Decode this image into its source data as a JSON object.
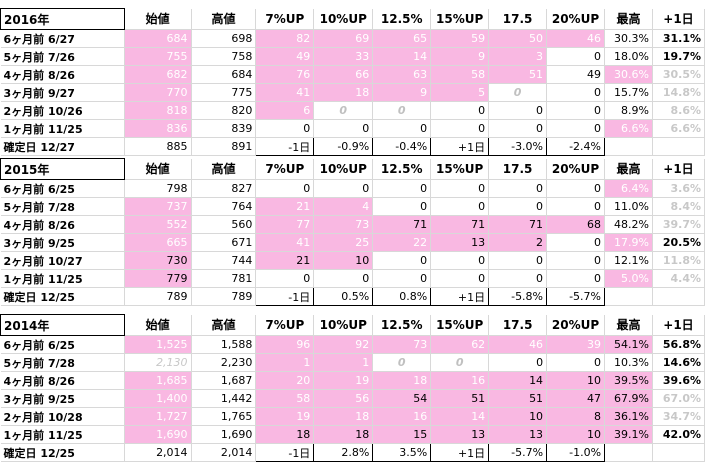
{
  "headers": [
    "始値",
    "高値",
    "7%UP",
    "10%UP",
    "12.5%",
    "15%UP",
    "17.5",
    "20%UP",
    "最高",
    "+1日"
  ],
  "colors": {
    "highlight": "#f9b8e2",
    "muted": "#c8c8c8",
    "grid": "#d8d8d8"
  },
  "blocks": [
    {
      "year": "2016年",
      "rows": [
        {
          "label": "6ヶ月前  6/27",
          "open": "684",
          "high": "698",
          "up7": "82",
          "up10": "69",
          "up125": "65",
          "up15": "59",
          "up175": "50",
          "up20": "46",
          "max": "30.3%",
          "next": "31.1%"
        },
        {
          "label": "5ヶ月前  7/26",
          "open": "755",
          "high": "758",
          "up7": "49",
          "up10": "33",
          "up125": "14",
          "up15": "9",
          "up175": "3",
          "up20": "0",
          "max": "18.0%",
          "next": "19.7%"
        },
        {
          "label": "4ヶ月前  8/26",
          "open": "682",
          "high": "684",
          "up7": "76",
          "up10": "66",
          "up125": "63",
          "up15": "58",
          "up175": "51",
          "up20": "49",
          "max": "30.6%",
          "next": "30.5%"
        },
        {
          "label": "3ヶ月前  9/27",
          "open": "770",
          "high": "775",
          "up7": "41",
          "up10": "18",
          "up125": "9",
          "up15": "5",
          "up175": "0",
          "up20": "0",
          "max": "15.7%",
          "next": "14.8%"
        },
        {
          "label": "2ヶ月前  10/26",
          "open": "818",
          "high": "820",
          "up7": "6",
          "up10": "0",
          "up125": "0",
          "up15": "0",
          "up175": "0",
          "up20": "0",
          "max": "8.9%",
          "next": "8.6%"
        },
        {
          "label": "1ヶ月前  11/25",
          "open": "836",
          "high": "839",
          "up7": "0",
          "up10": "0",
          "up125": "0",
          "up15": "0",
          "up175": "0",
          "up20": "0",
          "max": "6.6%",
          "next": "6.6%"
        }
      ],
      "confirm": {
        "label": "確定日  12/27",
        "open": "885",
        "high": "891",
        "up7": "-1日",
        "up10": "-0.9%",
        "up125": "-0.4%",
        "up15": "+1日",
        "up175": "-3.0%",
        "up20": "-2.4%",
        "max": "",
        "next": ""
      }
    },
    {
      "year": "2015年",
      "rows": [
        {
          "label": "6ヶ月前  6/25",
          "open": "798",
          "high": "827",
          "up7": "0",
          "up10": "0",
          "up125": "0",
          "up15": "0",
          "up175": "0",
          "up20": "0",
          "max": "6.4%",
          "next": "3.6%"
        },
        {
          "label": "5ヶ月前  7/28",
          "open": "737",
          "high": "764",
          "up7": "21",
          "up10": "4",
          "up125": "0",
          "up15": "0",
          "up175": "0",
          "up20": "0",
          "max": "11.0%",
          "next": "8.4%"
        },
        {
          "label": "4ヶ月前  8/26",
          "open": "552",
          "high": "560",
          "up7": "77",
          "up10": "73",
          "up125": "71",
          "up15": "71",
          "up175": "71",
          "up20": "68",
          "max": "48.2%",
          "next": "39.7%"
        },
        {
          "label": "3ヶ月前  9/25",
          "open": "665",
          "high": "671",
          "up7": "41",
          "up10": "25",
          "up125": "22",
          "up15": "13",
          "up175": "2",
          "up20": "0",
          "max": "17.9%",
          "next": "20.5%"
        },
        {
          "label": "2ヶ月前  10/27",
          "open": "730",
          "high": "744",
          "up7": "21",
          "up10": "10",
          "up125": "0",
          "up15": "0",
          "up175": "0",
          "up20": "0",
          "max": "12.1%",
          "next": "11.8%"
        },
        {
          "label": "1ヶ月前  11/25",
          "open": "779",
          "high": "781",
          "up7": "0",
          "up10": "0",
          "up125": "0",
          "up15": "0",
          "up175": "0",
          "up20": "0",
          "max": "5.0%",
          "next": "4.4%"
        }
      ],
      "confirm": {
        "label": "確定日  12/25",
        "open": "789",
        "high": "789",
        "up7": "-1日",
        "up10": "0.5%",
        "up125": "0.8%",
        "up15": "+1日",
        "up175": "-5.8%",
        "up20": "-5.7%",
        "max": "",
        "next": ""
      }
    },
    {
      "year": "2014年",
      "rows": [
        {
          "label": "6ヶ月前  6/25",
          "open": "1,525",
          "high": "1,588",
          "up7": "96",
          "up10": "92",
          "up125": "73",
          "up15": "62",
          "up175": "46",
          "up20": "39",
          "max": "54.1%",
          "next": "56.8%"
        },
        {
          "label": "5ヶ月前  7/28",
          "open": "2,130",
          "high": "2,230",
          "up7": "1",
          "up10": "1",
          "up125": "0",
          "up15": "0",
          "up175": "0",
          "up20": "0",
          "max": "10.3%",
          "next": "14.6%"
        },
        {
          "label": "4ヶ月前  8/26",
          "open": "1,685",
          "high": "1,687",
          "up7": "20",
          "up10": "19",
          "up125": "18",
          "up15": "16",
          "up175": "14",
          "up20": "10",
          "max": "39.5%",
          "next": "39.6%"
        },
        {
          "label": "3ヶ月前  9/25",
          "open": "1,400",
          "high": "1,442",
          "up7": "58",
          "up10": "56",
          "up125": "54",
          "up15": "51",
          "up175": "51",
          "up20": "47",
          "max": "67.9%",
          "next": "67.0%"
        },
        {
          "label": "2ヶ月前  10/28",
          "open": "1,727",
          "high": "1,765",
          "up7": "19",
          "up10": "18",
          "up125": "16",
          "up15": "14",
          "up175": "10",
          "up20": "8",
          "max": "36.1%",
          "next": "34.7%"
        },
        {
          "label": "1ヶ月前  11/25",
          "open": "1,690",
          "high": "1,690",
          "up7": "18",
          "up10": "18",
          "up125": "15",
          "up15": "13",
          "up175": "13",
          "up20": "10",
          "max": "39.1%",
          "next": "42.0%"
        }
      ],
      "confirm": {
        "label": "確定日  12/25",
        "open": "2,014",
        "high": "2,014",
        "up7": "-1日",
        "up10": "2.8%",
        "up125": "3.5%",
        "up15": "+1日",
        "up175": "-5.7%",
        "up20": "-1.0%",
        "max": "",
        "next": ""
      }
    }
  ]
}
